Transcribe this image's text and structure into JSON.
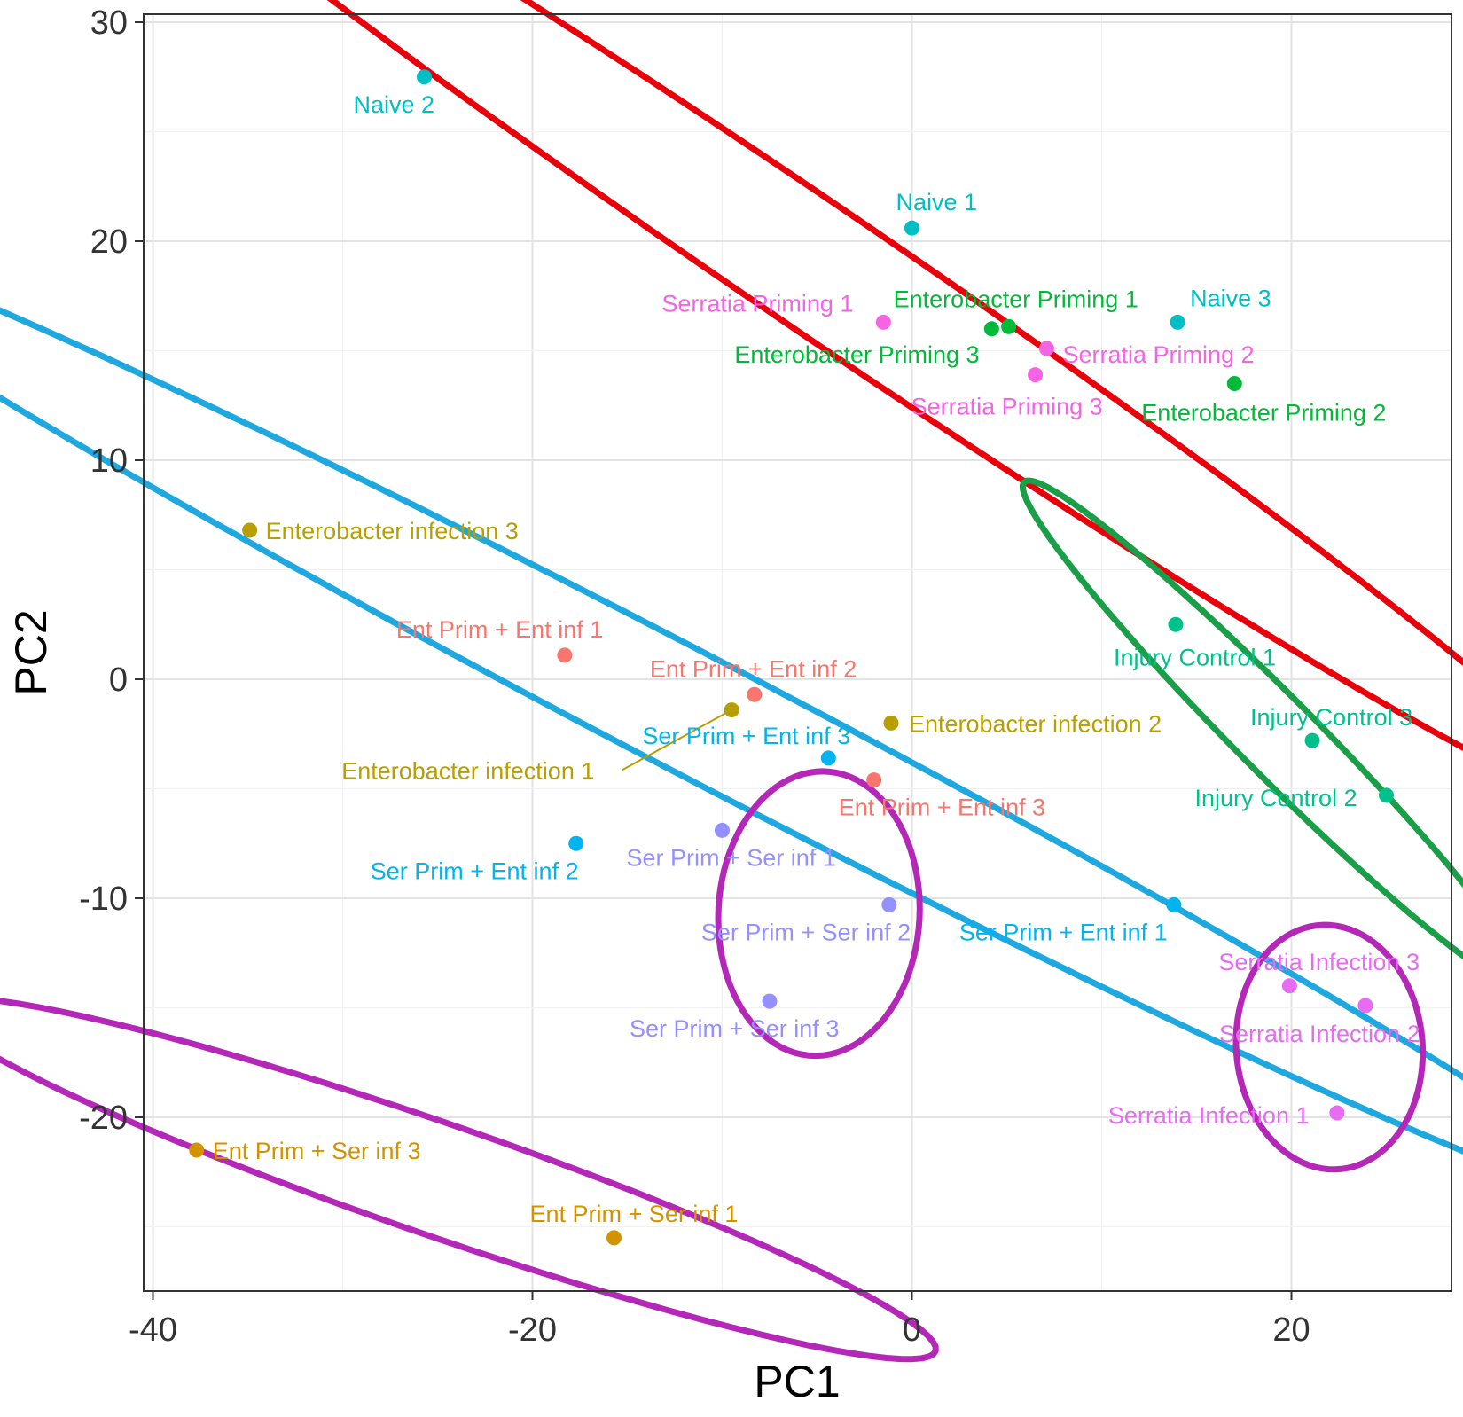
{
  "chart_data": {
    "type": "scatter",
    "title": "",
    "xlabel": "PC1",
    "ylabel": "PC2",
    "xlim": [
      -40,
      28
    ],
    "ylim": [
      -28,
      30
    ],
    "xticks": [
      -40,
      -20,
      0,
      20
    ],
    "yticks": [
      30,
      20,
      10,
      0,
      -10,
      -20
    ],
    "grid": true,
    "legend": "none",
    "points": [
      {
        "label": "Naive 2",
        "x": -25.7,
        "y": 27.5,
        "color": "#00BFC4"
      },
      {
        "label": "Naive 1",
        "x": 0,
        "y": 20.6,
        "color": "#00BFC4"
      },
      {
        "label": "Naive 3",
        "x": 14.0,
        "y": 16.3,
        "color": "#00BFC4"
      },
      {
        "label": "Serratia Priming 1",
        "x": -1.5,
        "y": 16.3,
        "color": "#F564E3"
      },
      {
        "label": "Serratia Priming 2",
        "x": 7.1,
        "y": 15.1,
        "color": "#F564E3"
      },
      {
        "label": "Serratia Priming 3",
        "x": 6.5,
        "y": 13.9,
        "color": "#F564E3"
      },
      {
        "label": "Enterobacter Priming 1",
        "x": 5.1,
        "y": 16.1,
        "color": "#00BA38"
      },
      {
        "label": "Enterobacter Priming 3",
        "x": 4.2,
        "y": 16.0,
        "color": "#00BA38"
      },
      {
        "label": "Enterobacter Priming 2",
        "x": 17.0,
        "y": 13.5,
        "color": "#00BA38"
      },
      {
        "label": "Enterobacter infection 3",
        "x": -34.9,
        "y": 6.8,
        "color": "#B79F00"
      },
      {
        "label": "Enterobacter infection 1",
        "x": -9.5,
        "y": -1.4,
        "color": "#B79F00"
      },
      {
        "label": "Enterobacter infection 2",
        "x": -1.1,
        "y": -2.0,
        "color": "#B79F00"
      },
      {
        "label": "Ent Prim + Ent inf 1",
        "x": -18.3,
        "y": 1.1,
        "color": "#F8766D"
      },
      {
        "label": "Ent Prim + Ent inf 2",
        "x": -8.3,
        "y": -0.7,
        "color": "#F8766D"
      },
      {
        "label": "Ent Prim + Ent inf 3",
        "x": -2.0,
        "y": -4.6,
        "color": "#F8766D"
      },
      {
        "label": "Ser Prim + Ent inf 3",
        "x": -4.4,
        "y": -3.6,
        "color": "#00B4F0"
      },
      {
        "label": "Ser Prim + Ent inf 2",
        "x": -17.7,
        "y": -7.5,
        "color": "#00B4F0"
      },
      {
        "label": "Ser Prim + Ent inf 1",
        "x": 13.8,
        "y": -10.3,
        "color": "#00B4F0"
      },
      {
        "label": "Ser Prim + Ser inf 1",
        "x": -10.0,
        "y": -6.9,
        "color": "#9590FF"
      },
      {
        "label": "Ser Prim + Ser inf 2",
        "x": -1.2,
        "y": -10.3,
        "color": "#9590FF"
      },
      {
        "label": "Ser Prim + Ser inf 3",
        "x": -7.5,
        "y": -14.7,
        "color": "#9590FF"
      },
      {
        "label": "Injury Control 1",
        "x": 13.9,
        "y": 2.5,
        "color": "#00C08B"
      },
      {
        "label": "Injury Control 3",
        "x": 21.1,
        "y": -2.8,
        "color": "#00C08B"
      },
      {
        "label": "Injury Control 2",
        "x": 25.0,
        "y": -5.3,
        "color": "#00C08B"
      },
      {
        "label": "Serratia Infection 3",
        "x": 19.9,
        "y": -14.0,
        "color": "#E76BF3"
      },
      {
        "label": "Serratia Infection 2",
        "x": 23.9,
        "y": -14.9,
        "color": "#E76BF3"
      },
      {
        "label": "Serratia Infection 1",
        "x": 22.4,
        "y": -19.8,
        "color": "#E76BF3"
      },
      {
        "label": "Ent Prim + Ser inf 3",
        "x": -37.7,
        "y": -21.5,
        "color": "#D39200"
      },
      {
        "label": "Ent Prim + Ser inf 1",
        "x": -15.7,
        "y": -25.5,
        "color": "#D39200"
      }
    ],
    "ellipses": [
      {
        "cx": -5.2,
        "cy": 18.9,
        "rx": 48.0,
        "ry": 3.0,
        "angle_deg": -30.5,
        "color": "#E8000B"
      },
      {
        "cx": -11.3,
        "cy": -1.7,
        "rx": 53.0,
        "ry": 2.8,
        "angle_deg": -24.3,
        "color": "#1FA8E0"
      },
      {
        "cx": 19.1,
        "cy": -2.5,
        "rx": 17.5,
        "ry": 1.9,
        "angle_deg": -41.0,
        "color": "#1B9E48"
      },
      {
        "cx": -4.9,
        "cy": -10.7,
        "rx": 6.5,
        "ry": 5.3,
        "angle_deg": 85.0,
        "color": "#B428B8"
      },
      {
        "cx": 22.0,
        "cy": -16.8,
        "rx": 5.6,
        "ry": 4.9,
        "angle_deg": 100.0,
        "color": "#B428B8"
      },
      {
        "cx": -25.1,
        "cy": -22.8,
        "rx": 27.5,
        "ry": 2.6,
        "angle_deg": -16.6,
        "color": "#B428B8"
      }
    ]
  }
}
